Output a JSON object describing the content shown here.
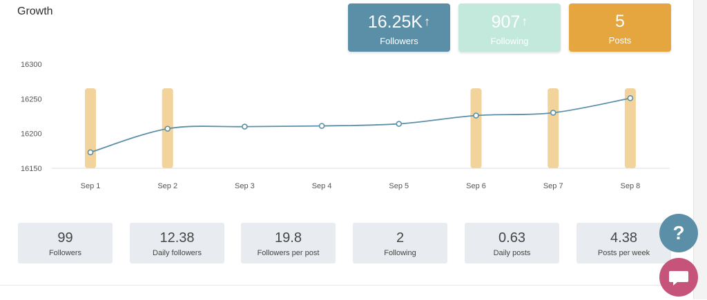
{
  "header": {
    "title": "Growth"
  },
  "cards": {
    "followers": {
      "value": "16.25K",
      "arrow": "↑",
      "label": "Followers",
      "color": "#5b8fa8"
    },
    "following": {
      "value": "907",
      "arrow": "↑",
      "label": "Following",
      "color": "#c3e9dd"
    },
    "posts": {
      "value": "5",
      "label": "Posts",
      "color": "#e5a53f"
    }
  },
  "chart_data": {
    "type": "line",
    "categories": [
      "Sep 1",
      "Sep 2",
      "Sep 3",
      "Sep 4",
      "Sep 5",
      "Sep 6",
      "Sep 7",
      "Sep 8"
    ],
    "series": [
      {
        "values": [
          16173,
          16207,
          16210,
          16211,
          16214,
          16226,
          16230,
          16251
        ],
        "color": "#5b8fa8"
      }
    ],
    "post_days": [
      "Sep 1",
      "Sep 2",
      "Sep 6",
      "Sep 7",
      "Sep 8"
    ],
    "post_bar_color": "#f2d39c",
    "yticks": [
      16150,
      16200,
      16250,
      16300
    ],
    "ylim": [
      16150,
      16300
    ],
    "grid": false,
    "legend": "none"
  },
  "metrics": [
    {
      "value": "99",
      "label": "Followers"
    },
    {
      "value": "12.38",
      "label": "Daily followers"
    },
    {
      "value": "19.8",
      "label": "Followers per post"
    },
    {
      "value": "2",
      "label": "Following"
    },
    {
      "value": "0.63",
      "label": "Daily posts"
    },
    {
      "value": "4.38",
      "label": "Posts per week"
    }
  ],
  "buttons": {
    "help_label": "?",
    "help_icon": "question-icon",
    "chat_icon": "chat-icon"
  }
}
